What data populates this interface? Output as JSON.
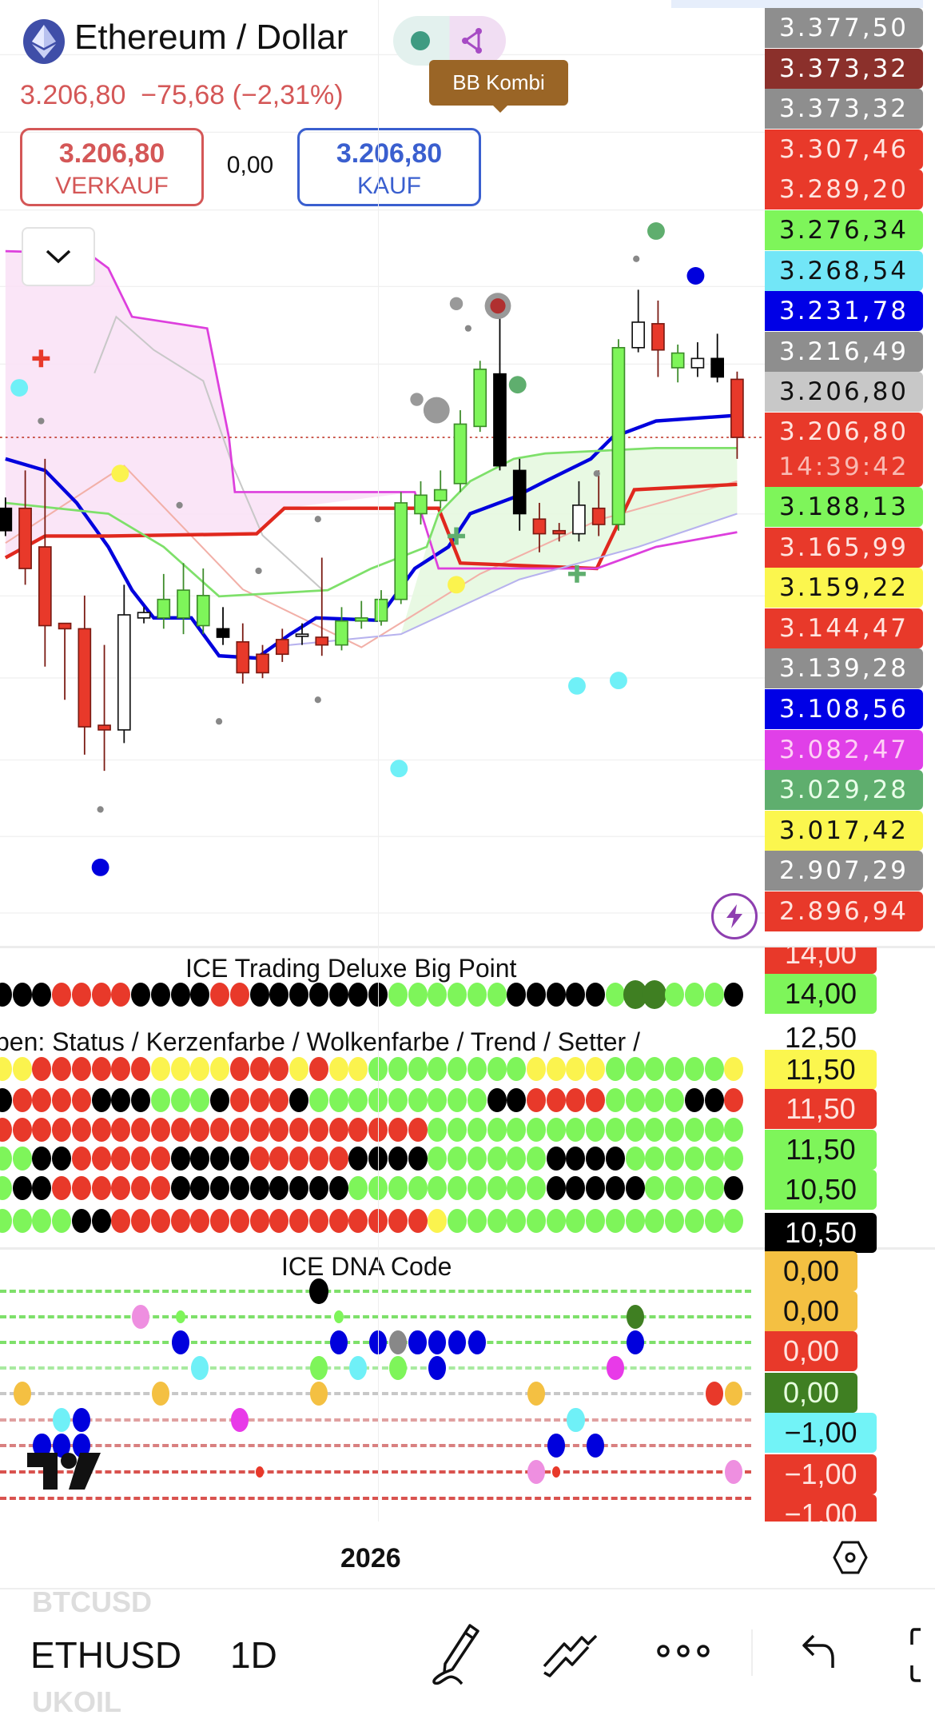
{
  "header": {
    "title": "Ethereum / Dollar",
    "price": "3.206,80",
    "change": "−75,68",
    "change_pct": "(−2,31%)",
    "tooltip": "BB Kombi",
    "sell": {
      "price": "3.206,80",
      "label": "VERKAUF"
    },
    "spread": "0,00",
    "buy": {
      "price": "3.206,80",
      "label": "KAUF"
    },
    "colors": {
      "down": "#d45757",
      "buy": "#3a5fcf",
      "tooltip": "#9a6526"
    }
  },
  "price_axis": [
    {
      "text": "3.377,50",
      "bg": "#8e8e8e",
      "fg": "#ffffff"
    },
    {
      "text": "3.373,32",
      "bg": "#8b302b",
      "fg": "#ffffff"
    },
    {
      "text": "3.373,32",
      "bg": "#8e8e8e",
      "fg": "#ffffff"
    },
    {
      "text": "3.307,46",
      "bg": "#e8392a",
      "fg": "#ffe4e0"
    },
    {
      "text": "3.289,20",
      "bg": "#e8392a",
      "fg": "#ffe4e0"
    },
    {
      "text": "3.276,34",
      "bg": "#7ef55a",
      "fg": "#111111"
    },
    {
      "text": "3.268,54",
      "bg": "#72e6f7",
      "fg": "#111111"
    },
    {
      "text": "3.231,78",
      "bg": "#0000e6",
      "fg": "#ffffff"
    },
    {
      "text": "3.216,49",
      "bg": "#8e8e8e",
      "fg": "#ffffff"
    },
    {
      "text": "3.206,80",
      "bg": "#c8c8c8",
      "fg": "#111111"
    },
    {
      "text": "3.206,80",
      "bg": "#e8392a",
      "fg": "#ffe4e0",
      "time": "14:39:42"
    },
    {
      "text": "3.188,13",
      "bg": "#7ef55a",
      "fg": "#111111"
    },
    {
      "text": "3.165,99",
      "bg": "#e8392a",
      "fg": "#ffe4e0"
    },
    {
      "text": "3.159,22",
      "bg": "#fbf64e",
      "fg": "#111111"
    },
    {
      "text": "3.144,47",
      "bg": "#e8392a",
      "fg": "#ffe4e0"
    },
    {
      "text": "3.139,28",
      "bg": "#8e8e8e",
      "fg": "#ffffff"
    },
    {
      "text": "3.108,56",
      "bg": "#0000e6",
      "fg": "#ffffff"
    },
    {
      "text": "3.082,47",
      "bg": "#e040e8",
      "fg": "#ffd0f5"
    },
    {
      "text": "3.029,28",
      "bg": "#5fae6e",
      "fg": "#eaffea"
    },
    {
      "text": "3.017,42",
      "bg": "#fbf64e",
      "fg": "#111111"
    },
    {
      "text": "2.907,29",
      "bg": "#8e8e8e",
      "fg": "#ffffff"
    },
    {
      "text": "2.896,94",
      "bg": "#e8392a",
      "fg": "#ffe4e0"
    }
  ],
  "chart_data": {
    "type": "candlestick",
    "current_price": 3206.8,
    "x_tick": "2026",
    "candles": [
      [
        3115,
        3129,
        3079,
        3086,
        "black"
      ],
      [
        3115,
        3164,
        3016,
        3037,
        "red"
      ],
      [
        3065,
        3179,
        2910,
        2963,
        "red"
      ],
      [
        2966,
        2966,
        2867,
        2959,
        "red"
      ],
      [
        2959,
        3002,
        2796,
        2832,
        "red"
      ],
      [
        2834,
        2938,
        2775,
        2828,
        "red"
      ],
      [
        2828,
        3016,
        2811,
        2977,
        "white"
      ],
      [
        2973,
        2987,
        2966,
        2980,
        "white"
      ],
      [
        2973,
        3030,
        2959,
        2997,
        "green"
      ],
      [
        2973,
        3044,
        2952,
        3009,
        "green"
      ],
      [
        2963,
        3037,
        2952,
        3002,
        "green"
      ],
      [
        2959,
        2987,
        2938,
        2948,
        "black"
      ],
      [
        2942,
        2966,
        2888,
        2902,
        "red"
      ],
      [
        2926,
        2938,
        2895,
        2902,
        "red"
      ],
      [
        2945,
        2959,
        2916,
        2926,
        "red"
      ],
      [
        2952,
        2966,
        2938,
        2952,
        "white"
      ],
      [
        2948,
        3051,
        2924,
        2938,
        "red"
      ],
      [
        2938,
        2987,
        2931,
        2969,
        "green"
      ],
      [
        2969,
        2995,
        2959,
        2973,
        "green"
      ],
      [
        2969,
        3009,
        2963,
        2997,
        "green"
      ],
      [
        2997,
        3136,
        2991,
        3122,
        "green"
      ],
      [
        3108,
        3150,
        3094,
        3132,
        "green"
      ],
      [
        3125,
        3164,
        3115,
        3139,
        "green"
      ],
      [
        3147,
        3242,
        3136,
        3224,
        "green"
      ],
      [
        3221,
        3306,
        3214,
        3295,
        "green"
      ],
      [
        3289,
        3377,
        3164,
        3170,
        "black"
      ],
      [
        3164,
        3179,
        3086,
        3108,
        "black"
      ],
      [
        3101,
        3122,
        3058,
        3082,
        "red"
      ],
      [
        3086,
        3096,
        3072,
        3082,
        "red"
      ],
      [
        3082,
        3150,
        3072,
        3119,
        "white"
      ],
      [
        3115,
        3164,
        3079,
        3094,
        "red"
      ],
      [
        3094,
        3334,
        3086,
        3323,
        "green"
      ],
      [
        3323,
        3398,
        3317,
        3356,
        "white"
      ],
      [
        3354,
        3384,
        3285,
        3320,
        "red"
      ],
      [
        3297,
        3327,
        3278,
        3316,
        "green"
      ],
      [
        3297,
        3330,
        3285,
        3309,
        "white"
      ],
      [
        3309,
        3341,
        3278,
        3285,
        "black"
      ],
      [
        3282,
        3292,
        3179,
        3206.8,
        "red"
      ]
    ],
    "lines": [
      {
        "color": "#0000dd",
        "points": [
          [
            0,
            3179
          ],
          [
            2,
            3164
          ],
          [
            3.6,
            3122
          ],
          [
            5.2,
            3065
          ],
          [
            6.4,
            3009
          ],
          [
            7.5,
            2973
          ],
          [
            9.4,
            2973
          ],
          [
            10.8,
            2924
          ],
          [
            12.7,
            2921
          ],
          [
            14.4,
            2952
          ],
          [
            15.7,
            2973
          ],
          [
            18.8,
            2970
          ],
          [
            20.7,
            3037
          ],
          [
            22.4,
            3065
          ],
          [
            23.5,
            3108
          ],
          [
            25.7,
            3129
          ],
          [
            27.3,
            3150
          ],
          [
            29.6,
            3179
          ],
          [
            30.7,
            3207
          ],
          [
            32.9,
            3228
          ],
          [
            36.8,
            3235
          ]
        ]
      },
      {
        "color": "#e0281e",
        "points": [
          [
            0,
            3051
          ],
          [
            2,
            3079
          ],
          [
            5.2,
            3079
          ],
          [
            12.7,
            3082
          ],
          [
            14.1,
            3115
          ],
          [
            21.9,
            3115
          ],
          [
            23,
            3044
          ],
          [
            29.9,
            3037
          ],
          [
            31.8,
            3139
          ],
          [
            37,
            3146
          ]
        ]
      },
      {
        "color": "#dd3fdd",
        "points": [
          [
            0,
            3448
          ],
          [
            4.2,
            3445
          ],
          [
            5.2,
            3426
          ],
          [
            6.4,
            3363
          ],
          [
            10.2,
            3348
          ],
          [
            11.3,
            3207
          ],
          [
            11.6,
            3136
          ],
          [
            20.7,
            3136
          ],
          [
            21.9,
            3037
          ],
          [
            29.9,
            3037
          ],
          [
            32.9,
            3065
          ],
          [
            37,
            3084
          ]
        ]
      },
      {
        "color": "#7ee06a",
        "points": [
          [
            0,
            3122
          ],
          [
            5.2,
            3108
          ],
          [
            8,
            3065
          ],
          [
            10.8,
            3001
          ],
          [
            16.3,
            3009
          ],
          [
            18.5,
            3037
          ],
          [
            21.3,
            3065
          ],
          [
            21.9,
            3108
          ],
          [
            23.5,
            3150
          ],
          [
            25.7,
            3179
          ],
          [
            27.3,
            3186
          ],
          [
            32.9,
            3193
          ],
          [
            37,
            3193
          ]
        ]
      },
      {
        "color": "#b7b2ee",
        "points": [
          [
            14,
            2937
          ],
          [
            20,
            2952
          ],
          [
            26,
            3023
          ],
          [
            32,
            3065
          ],
          [
            37,
            3108
          ]
        ]
      }
    ],
    "markers": [
      [
        0.7,
        3271,
        "#6ff0f7",
        8
      ],
      [
        5.8,
        3160,
        "#fbf34e",
        8
      ],
      [
        4.8,
        2650,
        "#0000dd",
        8
      ],
      [
        4.8,
        2725,
        "#888888",
        3
      ],
      [
        1.8,
        3228,
        "#888888",
        3
      ],
      [
        8.8,
        3119,
        "#888888",
        3
      ],
      [
        10.8,
        2839,
        "#888888",
        3
      ],
      [
        12.8,
        3034,
        "#888888",
        3
      ],
      [
        15.8,
        3101,
        "#888888",
        3
      ],
      [
        15.8,
        2867,
        "#888888",
        3
      ],
      [
        19.9,
        2778,
        "#6ff0f7",
        8
      ],
      [
        28.9,
        2885,
        "#6ff0f7",
        8
      ],
      [
        31,
        2892,
        "#6ff0f7",
        8
      ],
      [
        32.9,
        3474,
        "#5fae6e",
        8
      ],
      [
        34.9,
        3416,
        "#0000dd",
        8
      ],
      [
        24.9,
        3377,
        "#999999",
        12
      ],
      [
        24.9,
        3377,
        "#b03030",
        7
      ],
      [
        25.9,
        3275,
        "#5fae6e",
        8
      ],
      [
        21.8,
        3242,
        "#999999",
        12
      ],
      [
        20.8,
        3256,
        "#999999",
        6
      ],
      [
        22.8,
        3380,
        "#999999",
        6
      ],
      [
        22.8,
        3016,
        "#fbf34e",
        8
      ],
      [
        23.4,
        3348,
        "#888888",
        3
      ],
      [
        31.9,
        3438,
        "#888888",
        3
      ],
      [
        29.9,
        3160,
        "#888888",
        3
      ]
    ],
    "crosses": [
      [
        1.8,
        3309,
        "#e8392a"
      ],
      [
        22.8,
        3079,
        "#5fae6e"
      ],
      [
        28.9,
        3030,
        "#5fae6e"
      ]
    ]
  },
  "panel_bigpoint": {
    "title": "ICE Trading Deluxe Big Point",
    "row": "kkkrrrrkkkkrrkkkkkkkggggggkkkkkgDDgggk",
    "axis": [
      {
        "text": "14,00",
        "bg": "#e8392a",
        "fg": "#ffe4e0"
      },
      {
        "text": "14,00",
        "bg": "#7ef55a",
        "fg": "#111111"
      }
    ]
  },
  "panel_status": {
    "title": "ben: Status / Kerzenfarbe / Wolkenfarbe / Trend / Setter /",
    "rows": [
      "yyrrrrrryyyyrrryryyggggggggyyyyggggggy",
      "krrrrkkkgggkrrrkgggggggggkkrrrrggggkkr",
      "rrrrrrrrrrrrrrrrrrrrrrgggggggggggggggg",
      "ggkkrrrrrkkkkrrrrrkkkkggggggkkkkgggggg",
      "gkkrrrrrrkkkkkkkkkggggggggggkkkkkggggk",
      "ggggkkrrrrrrrrrrrrrrrrygggggggggggggg g"
    ],
    "axis": [
      {
        "text": "12,50",
        "bg": "transparent",
        "fg": "#111111"
      },
      {
        "text": "11,50",
        "bg": "#fbf64e",
        "fg": "#111111"
      },
      {
        "text": "11,50",
        "bg": "#e8392a",
        "fg": "#ffe4e0"
      },
      {
        "text": "11,50",
        "bg": "#7ef55a",
        "fg": "#111111"
      },
      {
        "text": "10,50",
        "bg": "#7ef55a",
        "fg": "#111111"
      },
      {
        "text": "10,50",
        "bg": "#000000",
        "fg": "#ffffff"
      }
    ]
  },
  "panel_dna": {
    "title": "ICE DNA Code",
    "rows": [
      {
        "color": "#7ee06a",
        "markers": [
          [
            16,
            "#000000",
            14
          ]
        ]
      },
      {
        "color": "#7ee06a",
        "markers": [
          [
            7,
            "#ee8fe0",
            13
          ],
          [
            9,
            "#7ef55a",
            7
          ],
          [
            17,
            "#7ef55a",
            7
          ],
          [
            32,
            "#3f7f22",
            13
          ]
        ]
      },
      {
        "color": "#7ee06a",
        "markers": [
          [
            9,
            "#0000dd",
            13
          ],
          [
            17,
            "#0000dd",
            13
          ],
          [
            19,
            "#0000dd",
            13
          ],
          [
            20,
            "#888888",
            13
          ],
          [
            21,
            "#0000dd",
            13
          ],
          [
            22,
            "#0000dd",
            13
          ],
          [
            23,
            "#0000dd",
            13
          ],
          [
            24,
            "#0000dd",
            13
          ],
          [
            32,
            "#0000dd",
            13
          ]
        ]
      },
      {
        "color": "#a8eaa0",
        "markers": [
          [
            10,
            "#6ff0f7",
            13
          ],
          [
            16,
            "#7ef55a",
            13
          ],
          [
            18,
            "#6ff0f7",
            13
          ],
          [
            20,
            "#7ef55a",
            13
          ],
          [
            22,
            "#0000dd",
            13
          ],
          [
            31,
            "#e83ae8",
            13
          ]
        ]
      },
      {
        "color": "#c8c8c8",
        "markers": [
          [
            1,
            "#f4c042",
            13
          ],
          [
            8,
            "#f4c042",
            13
          ],
          [
            16,
            "#f4c042",
            13
          ],
          [
            27,
            "#f4c042",
            13
          ],
          [
            36,
            "#e8392a",
            13
          ],
          [
            37,
            "#f4c042",
            13
          ]
        ]
      },
      {
        "color": "#e0a0a0",
        "markers": [
          [
            3,
            "#6ff0f7",
            13
          ],
          [
            4,
            "#0000dd",
            13
          ],
          [
            12,
            "#e83ae8",
            13
          ],
          [
            29,
            "#6ff0f7",
            13
          ]
        ]
      },
      {
        "color": "#d98080",
        "markers": [
          [
            2,
            "#0000dd",
            13
          ],
          [
            3,
            "#0000dd",
            13
          ],
          [
            4,
            "#0000dd",
            13
          ],
          [
            28,
            "#0000dd",
            13
          ],
          [
            30,
            "#0000dd",
            13
          ]
        ]
      },
      {
        "color": "#d9534f",
        "markers": [
          [
            13,
            "#e8392a",
            6
          ],
          [
            27,
            "#ee8fe0",
            13
          ],
          [
            28,
            "#e8392a",
            6
          ],
          [
            37,
            "#ee8fe0",
            13
          ]
        ]
      },
      {
        "color": "#d9534f",
        "markers": []
      }
    ],
    "axis": [
      {
        "text": "0,00",
        "bg": "#f4c042",
        "fg": "#111111"
      },
      {
        "text": "0,00",
        "bg": "#f4c042",
        "fg": "#111111"
      },
      {
        "text": "0,00",
        "bg": "#e8392a",
        "fg": "#ffe4e0"
      },
      {
        "text": "0,00",
        "bg": "#3f7f22",
        "fg": "#e8ffe0"
      },
      {
        "text": "−1,00",
        "bg": "#72f3f7",
        "fg": "#111111"
      },
      {
        "text": "−1,00",
        "bg": "#e8392a",
        "fg": "#ffe4e0"
      },
      {
        "text": "−1,00",
        "bg": "#e8392a",
        "fg": "#ffe4e0"
      }
    ]
  },
  "time_axis": {
    "label": "2026"
  },
  "bottom_bar": {
    "symbol_prev": "BTCUSD",
    "symbol": "ETHUSD",
    "symbol_next": "UKOIL",
    "interval": "1D"
  }
}
